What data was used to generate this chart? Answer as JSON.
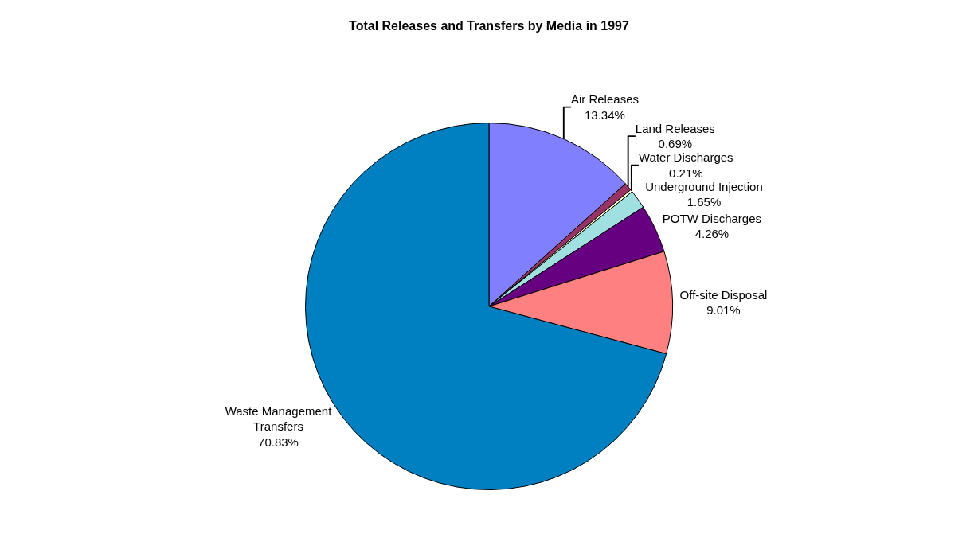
{
  "chart_data": {
    "type": "pie",
    "title": "Total Releases and Transfers by Media in 1997",
    "categories": [
      "Air Releases",
      "Land Releases",
      "Water Discharges",
      "Underground Injection",
      "POTW Discharges",
      "Off-site Disposal",
      "Waste Management Transfers"
    ],
    "values": [
      13.34,
      0.69,
      0.21,
      1.65,
      4.26,
      9.01,
      70.83
    ],
    "value_labels": [
      "13.34%",
      "0.69%",
      "0.21%",
      "1.65%",
      "4.26%",
      "9.01%",
      "70.83%"
    ],
    "colors": [
      "#8080ff",
      "#993366",
      "#ffffcc",
      "#a0e0e0",
      "#660080",
      "#ff8080",
      "#0080c0"
    ],
    "legend": false
  }
}
